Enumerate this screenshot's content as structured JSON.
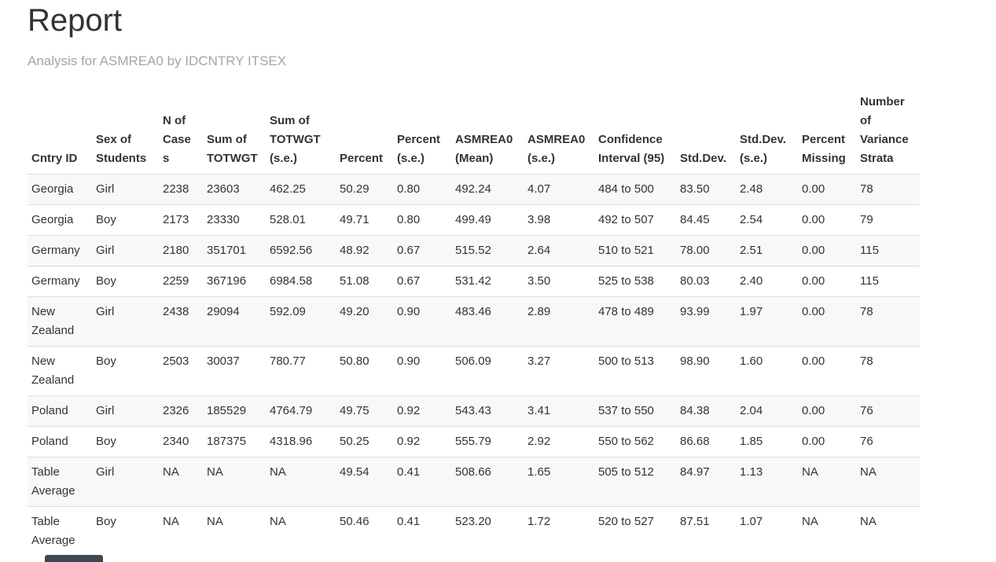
{
  "page": {
    "title": "Report",
    "subtitle": "Analysis for ASMREA0 by IDCNTRY ITSEX"
  },
  "table": {
    "columns": [
      "Cntry ID",
      "Sex of Students",
      "N of Cases",
      "Sum of TOTWGT",
      "Sum of TOTWGT (s.e.)",
      "Percent",
      "Percent (s.e.)",
      "ASMREA0 (Mean)",
      "ASMREA0 (s.e.)",
      "Confidence Interval (95)",
      "Std.Dev.",
      "Std.Dev. (s.e.)",
      "Percent Missing",
      "Number of Variance Strata"
    ],
    "rows": [
      [
        "Georgia",
        "Girl",
        "2238",
        "23603",
        "462.25",
        "50.29",
        "0.80",
        "492.24",
        "4.07",
        "484 to 500",
        "83.50",
        "2.48",
        "0.00",
        "78"
      ],
      [
        "Georgia",
        "Boy",
        "2173",
        "23330",
        "528.01",
        "49.71",
        "0.80",
        "499.49",
        "3.98",
        "492 to 507",
        "84.45",
        "2.54",
        "0.00",
        "79"
      ],
      [
        "Germany",
        "Girl",
        "2180",
        "351701",
        "6592.56",
        "48.92",
        "0.67",
        "515.52",
        "2.64",
        "510 to 521",
        "78.00",
        "2.51",
        "0.00",
        "115"
      ],
      [
        "Germany",
        "Boy",
        "2259",
        "367196",
        "6984.58",
        "51.08",
        "0.67",
        "531.42",
        "3.50",
        "525 to 538",
        "80.03",
        "2.40",
        "0.00",
        "115"
      ],
      [
        "New Zealand",
        "Girl",
        "2438",
        "29094",
        "592.09",
        "49.20",
        "0.90",
        "483.46",
        "2.89",
        "478 to 489",
        "93.99",
        "1.97",
        "0.00",
        "78"
      ],
      [
        "New Zealand",
        "Boy",
        "2503",
        "30037",
        "780.77",
        "50.80",
        "0.90",
        "506.09",
        "3.27",
        "500 to 513",
        "98.90",
        "1.60",
        "0.00",
        "78"
      ],
      [
        "Poland",
        "Girl",
        "2326",
        "185529",
        "4764.79",
        "49.75",
        "0.92",
        "543.43",
        "3.41",
        "537 to 550",
        "84.38",
        "2.04",
        "0.00",
        "76"
      ],
      [
        "Poland",
        "Boy",
        "2340",
        "187375",
        "4318.96",
        "50.25",
        "0.92",
        "555.79",
        "2.92",
        "550 to 562",
        "86.68",
        "1.85",
        "0.00",
        "76"
      ],
      [
        "Table Average",
        "Girl",
        "NA",
        "NA",
        "NA",
        "49.54",
        "0.41",
        "508.66",
        "1.65",
        "505 to 512",
        "84.97",
        "1.13",
        "NA",
        "NA"
      ],
      [
        "Table Average",
        "Boy",
        "NA",
        "NA",
        "NA",
        "50.46",
        "0.41",
        "523.20",
        "1.72",
        "520 to 527",
        "87.51",
        "1.07",
        "NA",
        "NA"
      ]
    ]
  },
  "colors": {
    "title": "#333333",
    "subtitle": "#a5a5a5",
    "table_text": "#333333",
    "stripe": "#f8f8f8",
    "border": "#dddddd",
    "partial_element": "#3e4852"
  }
}
